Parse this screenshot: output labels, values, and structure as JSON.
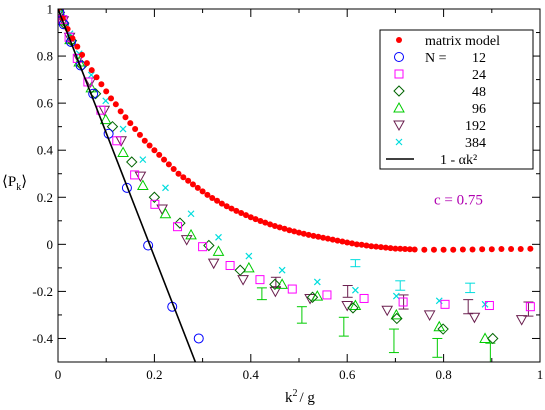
{
  "chart_data": {
    "type": "scatter",
    "xlabel_main": "k",
    "xlabel_sup": "2",
    "xlabel_rest": "/ g",
    "ylabel_main": "⟨P",
    "ylabel_sub": "k",
    "ylabel_close": "⟩",
    "xlim": [
      0,
      1
    ],
    "ylim": [
      -0.5,
      1
    ],
    "xticks": [
      0,
      0.2,
      0.4,
      0.6,
      0.8,
      1
    ],
    "xtick_labels": [
      "0",
      "0.2",
      "0.4",
      "0.6",
      "0.8",
      "1"
    ],
    "yticks": [
      -0.4,
      -0.2,
      0,
      0.2,
      0.4,
      0.6,
      0.8,
      1
    ],
    "ytick_labels": [
      "-0.4",
      "-0.2",
      "0",
      "0.2",
      "0.4",
      "0.6",
      "0.8",
      "1"
    ],
    "annotation": {
      "text": "c = 0.75",
      "color": "#b000b0",
      "x": 0.78,
      "y": 0.17
    },
    "legend": {
      "placement": "top-right",
      "title_label": "N =",
      "entries": [
        {
          "text": "matrix model"
        },
        {
          "text": "12"
        },
        {
          "text": "24"
        },
        {
          "text": "48"
        },
        {
          "text": "96"
        },
        {
          "text": "192"
        },
        {
          "text": "384"
        },
        {
          "text": "1 - αk²"
        }
      ]
    },
    "series": [
      {
        "name": "matrix model",
        "marker": "filled-circle",
        "color": "#ff0000",
        "points": [
          [
            0.0,
            1.0
          ],
          [
            0.01,
            0.96
          ],
          [
            0.02,
            0.915
          ],
          [
            0.03,
            0.875
          ],
          [
            0.04,
            0.84
          ],
          [
            0.05,
            0.805
          ],
          [
            0.06,
            0.77
          ],
          [
            0.07,
            0.74
          ],
          [
            0.08,
            0.71
          ],
          [
            0.09,
            0.68
          ],
          [
            0.1,
            0.65
          ],
          [
            0.11,
            0.62
          ],
          [
            0.12,
            0.595
          ],
          [
            0.13,
            0.565
          ],
          [
            0.14,
            0.54
          ],
          [
            0.15,
            0.515
          ],
          [
            0.16,
            0.49
          ],
          [
            0.17,
            0.465
          ],
          [
            0.18,
            0.44
          ],
          [
            0.19,
            0.42
          ],
          [
            0.2,
            0.4
          ],
          [
            0.21,
            0.38
          ],
          [
            0.22,
            0.36
          ],
          [
            0.23,
            0.34
          ],
          [
            0.24,
            0.32
          ],
          [
            0.25,
            0.3
          ],
          [
            0.26,
            0.285
          ],
          [
            0.27,
            0.27
          ],
          [
            0.28,
            0.255
          ],
          [
            0.29,
            0.24
          ],
          [
            0.3,
            0.225
          ],
          [
            0.31,
            0.21
          ],
          [
            0.32,
            0.197
          ],
          [
            0.33,
            0.185
          ],
          [
            0.34,
            0.173
          ],
          [
            0.35,
            0.162
          ],
          [
            0.36,
            0.152
          ],
          [
            0.37,
            0.142
          ],
          [
            0.38,
            0.133
          ],
          [
            0.39,
            0.124
          ],
          [
            0.4,
            0.115
          ],
          [
            0.41,
            0.107
          ],
          [
            0.42,
            0.099
          ],
          [
            0.43,
            0.092
          ],
          [
            0.44,
            0.085
          ],
          [
            0.45,
            0.078
          ],
          [
            0.46,
            0.072
          ],
          [
            0.47,
            0.066
          ],
          [
            0.48,
            0.06
          ],
          [
            0.49,
            0.055
          ],
          [
            0.5,
            0.05
          ],
          [
            0.51,
            0.045
          ],
          [
            0.52,
            0.04
          ],
          [
            0.53,
            0.036
          ],
          [
            0.54,
            0.032
          ],
          [
            0.55,
            0.028
          ],
          [
            0.56,
            0.024
          ],
          [
            0.57,
            0.02
          ],
          [
            0.58,
            0.016
          ],
          [
            0.59,
            0.012
          ],
          [
            0.6,
            0.008
          ],
          [
            0.61,
            0.004
          ],
          [
            0.62,
            0.0
          ],
          [
            0.63,
            -0.002
          ],
          [
            0.64,
            -0.005
          ],
          [
            0.65,
            -0.008
          ],
          [
            0.66,
            -0.01
          ],
          [
            0.67,
            -0.012
          ],
          [
            0.68,
            -0.014
          ],
          [
            0.69,
            -0.016
          ],
          [
            0.7,
            -0.018
          ],
          [
            0.71,
            -0.019
          ],
          [
            0.72,
            -0.02
          ],
          [
            0.73,
            -0.021
          ],
          [
            0.74,
            -0.022
          ],
          [
            0.76,
            -0.023
          ],
          [
            0.78,
            -0.023
          ],
          [
            0.8,
            -0.023
          ],
          [
            0.82,
            -0.023
          ],
          [
            0.84,
            -0.022
          ],
          [
            0.86,
            -0.022
          ],
          [
            0.88,
            -0.021
          ],
          [
            0.9,
            -0.021
          ],
          [
            0.92,
            -0.02
          ],
          [
            0.94,
            -0.02
          ],
          [
            0.96,
            -0.02
          ],
          [
            0.98,
            -0.019
          ]
        ]
      },
      {
        "name": "12",
        "marker": "circle",
        "color": "#0000ff",
        "points": [
          [
            0.003,
            0.985
          ],
          [
            0.012,
            0.935
          ],
          [
            0.027,
            0.86
          ],
          [
            0.047,
            0.76
          ],
          [
            0.073,
            0.64
          ],
          [
            0.105,
            0.47
          ],
          [
            0.143,
            0.24
          ],
          [
            0.187,
            -0.005
          ],
          [
            0.237,
            -0.265
          ],
          [
            0.292,
            -0.4
          ]
        ]
      },
      {
        "name": "24",
        "marker": "square",
        "color": "#ff00ff",
        "points": [
          [
            0.003,
            0.99
          ],
          [
            0.01,
            0.955
          ],
          [
            0.023,
            0.88
          ],
          [
            0.04,
            0.79
          ],
          [
            0.062,
            0.69
          ],
          [
            0.089,
            0.57
          ],
          [
            0.122,
            0.44
          ],
          [
            0.159,
            0.295
          ],
          [
            0.201,
            0.17
          ],
          [
            0.248,
            0.075
          ],
          [
            0.3,
            -0.01
          ],
          [
            0.357,
            -0.09
          ],
          [
            0.419,
            -0.15
          ],
          [
            0.486,
            -0.19
          ],
          [
            0.558,
            -0.215
          ],
          [
            0.635,
            -0.23
          ],
          [
            0.716,
            -0.245
          ],
          [
            0.803,
            -0.255
          ],
          [
            0.895,
            -0.26
          ],
          [
            0.98,
            -0.265
          ]
        ]
      },
      {
        "name": "48",
        "marker": "diamond",
        "color": "#006400",
        "points": [
          [
            0.003,
            0.985
          ],
          [
            0.012,
            0.94
          ],
          [
            0.028,
            0.865
          ],
          [
            0.05,
            0.76
          ],
          [
            0.078,
            0.64
          ],
          [
            0.113,
            0.5
          ],
          [
            0.153,
            0.35
          ],
          [
            0.2,
            0.2
          ],
          [
            0.253,
            0.09
          ],
          [
            0.313,
            -0.005
          ],
          [
            0.378,
            -0.11
          ],
          [
            0.45,
            -0.17
          ],
          [
            0.528,
            -0.225
          ],
          [
            0.612,
            -0.27
          ],
          [
            0.703,
            -0.315
          ],
          [
            0.799,
            -0.36
          ],
          [
            0.902,
            -0.4
          ]
        ]
      },
      {
        "name": "96",
        "marker": "triangle-up",
        "color": "#00cc00",
        "points": [
          [
            0.003,
            0.99
          ],
          [
            0.011,
            0.95
          ],
          [
            0.025,
            0.87
          ],
          [
            0.044,
            0.775
          ],
          [
            0.069,
            0.665
          ],
          [
            0.099,
            0.53
          ],
          [
            0.135,
            0.39
          ],
          [
            0.176,
            0.25
          ],
          [
            0.223,
            0.13
          ],
          [
            0.276,
            0.04
          ],
          [
            0.333,
            -0.03
          ],
          [
            0.396,
            -0.1
          ],
          [
            0.465,
            -0.17
          ],
          [
            0.538,
            -0.22
          ],
          [
            0.617,
            -0.26
          ],
          [
            0.702,
            -0.3
          ],
          [
            0.791,
            -0.35
          ],
          [
            0.886,
            -0.4
          ]
        ]
      },
      {
        "name": "192",
        "marker": "triangle-down",
        "color": "#6b1f4f",
        "points": [
          [
            0.003,
            0.99
          ],
          [
            0.011,
            0.95
          ],
          [
            0.024,
            0.88
          ],
          [
            0.043,
            0.79
          ],
          [
            0.067,
            0.69
          ],
          [
            0.096,
            0.57
          ],
          [
            0.131,
            0.44
          ],
          [
            0.171,
            0.29
          ],
          [
            0.216,
            0.15
          ],
          [
            0.267,
            0.02
          ],
          [
            0.323,
            -0.08
          ],
          [
            0.384,
            -0.15
          ],
          [
            0.451,
            -0.2
          ],
          [
            0.523,
            -0.23
          ],
          [
            0.6,
            -0.26
          ],
          [
            0.683,
            -0.28
          ],
          [
            0.771,
            -0.3
          ],
          [
            0.864,
            -0.31
          ],
          [
            0.962,
            -0.32
          ]
        ]
      },
      {
        "name": "384",
        "marker": "x-cross",
        "color": "#00dddd",
        "points": [
          [
            0.003,
            0.995
          ],
          [
            0.011,
            0.96
          ],
          [
            0.025,
            0.895
          ],
          [
            0.044,
            0.81
          ],
          [
            0.069,
            0.72
          ],
          [
            0.099,
            0.61
          ],
          [
            0.135,
            0.49
          ],
          [
            0.176,
            0.36
          ],
          [
            0.223,
            0.24
          ],
          [
            0.276,
            0.13
          ],
          [
            0.333,
            0.03
          ],
          [
            0.396,
            -0.05
          ],
          [
            0.465,
            -0.11
          ],
          [
            0.538,
            -0.16
          ],
          [
            0.617,
            -0.195
          ],
          [
            0.702,
            -0.22
          ],
          [
            0.791,
            -0.24
          ],
          [
            0.886,
            -0.255
          ]
        ]
      }
    ],
    "error_bars": {
      "96": [
        [
          0.423,
          -0.21,
          0.025
        ],
        [
          0.506,
          -0.3,
          0.035
        ],
        [
          0.593,
          -0.35,
          0.04
        ],
        [
          0.697,
          -0.41,
          0.05
        ],
        [
          0.787,
          -0.44,
          0.04
        ],
        [
          0.897,
          -0.47,
          0.05
        ]
      ],
      "192": [
        [
          0.452,
          -0.16,
          0.02
        ],
        [
          0.601,
          -0.2,
          0.025
        ],
        [
          0.717,
          -0.245,
          0.03
        ],
        [
          0.851,
          -0.265,
          0.03
        ],
        [
          0.976,
          -0.275,
          0.03
        ]
      ],
      "384": [
        [
          0.617,
          -0.08,
          0.015
        ],
        [
          0.71,
          -0.175,
          0.02
        ],
        [
          0.855,
          -0.185,
          0.02
        ]
      ]
    },
    "line": {
      "name": "1 - αk²",
      "color": "#000000",
      "x0": 0,
      "y0": 1,
      "x1": 0.285,
      "y1": -0.5
    }
  }
}
